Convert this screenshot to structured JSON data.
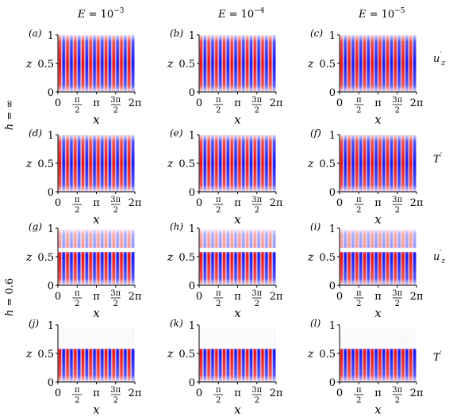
{
  "figure": {
    "column_headers": [
      "E = 10^-3",
      "E = 10^-4",
      "E = 10^-5"
    ],
    "row_group_labels": [
      "h = ∞",
      "h = 0.6"
    ],
    "row_field_labels": [
      "u'z",
      "T'",
      "u'z",
      "T'"
    ],
    "panel_letters": [
      "(a)",
      "(b)",
      "(c)",
      "(d)",
      "(e)",
      "(f)",
      "(g)",
      "(h)",
      "(i)",
      "(j)",
      "(k)",
      "(l)"
    ],
    "x_axis_label": "x",
    "y_axis_label": "z",
    "x_ticks": [
      "0",
      "π/2",
      "π",
      "3π/2",
      "2π"
    ],
    "y_ticks": [
      "0",
      "0.5",
      "1"
    ],
    "colors": {
      "positive": "#e8141b",
      "negative": "#1b1bf0",
      "zero": "#ffffff"
    }
  },
  "chart_data": {
    "type": "heatmap",
    "description_panels": "12 panels, 4 rows × 3 columns, vertical convection rolls; rows 3–4 (h=0.6) show weak layer above z≈0.6",
    "x_range": [
      0,
      6.283
    ],
    "z_range": [
      0,
      1
    ],
    "rolls_per_panel": 10,
    "rows": [
      {
        "group": "h = ∞",
        "field": "u'z",
        "layer_top": 1.0
      },
      {
        "group": "h = ∞",
        "field": "T'",
        "layer_top": 1.0
      },
      {
        "group": "h = 0.6",
        "field": "u'z",
        "layer_top": 0.6,
        "upper_weak": 0.9
      },
      {
        "group": "h = 0.6",
        "field": "T'",
        "layer_top": 0.6,
        "upper_weak": 0.08
      }
    ]
  }
}
